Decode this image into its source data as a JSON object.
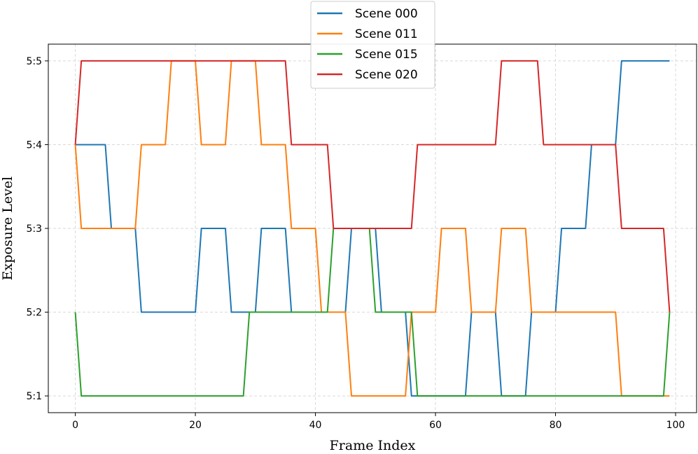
{
  "chart_data": {
    "type": "line",
    "title": "",
    "xlabel": "Frame Index",
    "ylabel": "Exposure Level",
    "xlim": [
      -4.5,
      103.5
    ],
    "ylim": [
      0.8,
      5.2
    ],
    "xticks": [
      0,
      20,
      40,
      60,
      80,
      100
    ],
    "xtick_labels": [
      "0",
      "20",
      "40",
      "60",
      "80",
      "100"
    ],
    "yticks": [
      1,
      2,
      3,
      4,
      5
    ],
    "ytick_labels": [
      "5:1",
      "5:2",
      "5:3",
      "5:4",
      "5:5"
    ],
    "grid": true,
    "legend_position": "top-center",
    "series": [
      {
        "name": "Scene 000",
        "color": "#1f77b4",
        "points": [
          [
            0,
            4
          ],
          [
            5,
            4
          ],
          [
            6,
            3
          ],
          [
            10,
            3
          ],
          [
            11,
            2
          ],
          [
            20,
            2
          ],
          [
            21,
            3
          ],
          [
            25,
            3
          ],
          [
            26,
            2
          ],
          [
            30,
            2
          ],
          [
            31,
            3
          ],
          [
            35,
            3
          ],
          [
            36,
            2
          ],
          [
            45,
            2
          ],
          [
            46,
            3
          ],
          [
            50,
            3
          ],
          [
            51,
            2
          ],
          [
            55,
            2
          ],
          [
            56,
            1
          ],
          [
            65,
            1
          ],
          [
            66,
            2
          ],
          [
            70,
            2
          ],
          [
            71,
            1
          ],
          [
            75,
            1
          ],
          [
            76,
            2
          ],
          [
            80,
            2
          ],
          [
            81,
            3
          ],
          [
            85,
            3
          ],
          [
            86,
            4
          ],
          [
            90,
            4
          ],
          [
            91,
            5
          ],
          [
            99,
            5
          ]
        ]
      },
      {
        "name": "Scene 011",
        "color": "#ff7f0e",
        "points": [
          [
            0,
            4
          ],
          [
            1,
            3
          ],
          [
            10,
            3
          ],
          [
            11,
            4
          ],
          [
            15,
            4
          ],
          [
            16,
            5
          ],
          [
            20,
            5
          ],
          [
            21,
            4
          ],
          [
            25,
            4
          ],
          [
            26,
            5
          ],
          [
            30,
            5
          ],
          [
            31,
            4
          ],
          [
            35,
            4
          ],
          [
            36,
            3
          ],
          [
            40,
            3
          ],
          [
            41,
            2
          ],
          [
            45,
            2
          ],
          [
            46,
            1
          ],
          [
            55,
            1
          ],
          [
            56,
            2
          ],
          [
            60,
            2
          ],
          [
            61,
            3
          ],
          [
            65,
            3
          ],
          [
            66,
            2
          ],
          [
            70,
            2
          ],
          [
            71,
            3
          ],
          [
            75,
            3
          ],
          [
            76,
            2
          ],
          [
            90,
            2
          ],
          [
            91,
            1
          ],
          [
            99,
            1
          ]
        ]
      },
      {
        "name": "Scene 015",
        "color": "#2ca02c",
        "points": [
          [
            0,
            2
          ],
          [
            1,
            1
          ],
          [
            28,
            1
          ],
          [
            29,
            2
          ],
          [
            42,
            2
          ],
          [
            43,
            3
          ],
          [
            49,
            3
          ],
          [
            50,
            2
          ],
          [
            56,
            2
          ],
          [
            57,
            1
          ],
          [
            98,
            1
          ],
          [
            99,
            2
          ]
        ]
      },
      {
        "name": "Scene 020",
        "color": "#d62728",
        "points": [
          [
            0,
            4
          ],
          [
            1,
            5
          ],
          [
            35,
            5
          ],
          [
            36,
            4
          ],
          [
            42,
            4
          ],
          [
            43,
            3
          ],
          [
            56,
            3
          ],
          [
            57,
            4
          ],
          [
            70,
            4
          ],
          [
            71,
            5
          ],
          [
            77,
            5
          ],
          [
            78,
            4
          ],
          [
            90,
            4
          ],
          [
            91,
            3
          ],
          [
            98,
            3
          ],
          [
            99,
            2
          ]
        ]
      }
    ]
  }
}
